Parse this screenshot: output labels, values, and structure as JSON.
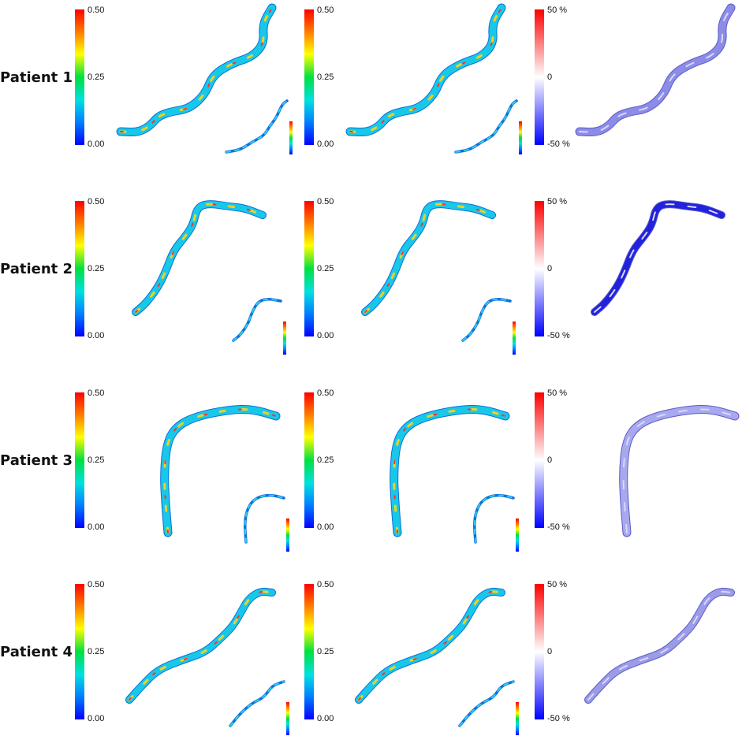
{
  "figure": {
    "rows": [
      {
        "label": "Patient 1",
        "vessel": "p1"
      },
      {
        "label": "Patient 2",
        "vessel": "p2"
      },
      {
        "label": "Patient 3",
        "vessel": "p3"
      },
      {
        "label": "Patient 4",
        "vessel": "p4"
      }
    ],
    "panels": [
      {
        "scale": "rainbow",
        "ticks": [
          "0.50",
          "0.25",
          "0.00"
        ],
        "inset": true
      },
      {
        "scale": "rainbow",
        "ticks": [
          "0.50",
          "0.25",
          "0.00"
        ],
        "inset": true
      },
      {
        "scale": "diverging",
        "ticks": [
          "50 %",
          "0",
          "-50 %"
        ],
        "inset": false
      }
    ],
    "colors": {
      "rainbow": [
        "#ff0000",
        "#ff8000",
        "#ffff00",
        "#00e040",
        "#00e0e0",
        "#0080ff",
        "#0000ff"
      ],
      "diverging": [
        "#ff0000",
        "#ffffff",
        "#0000ff"
      ],
      "diff_fill": {
        "p1": "#8c8ce8",
        "p2": "#2222dd",
        "p3": "#a8a8ee",
        "p4": "#9b9be8"
      }
    }
  }
}
